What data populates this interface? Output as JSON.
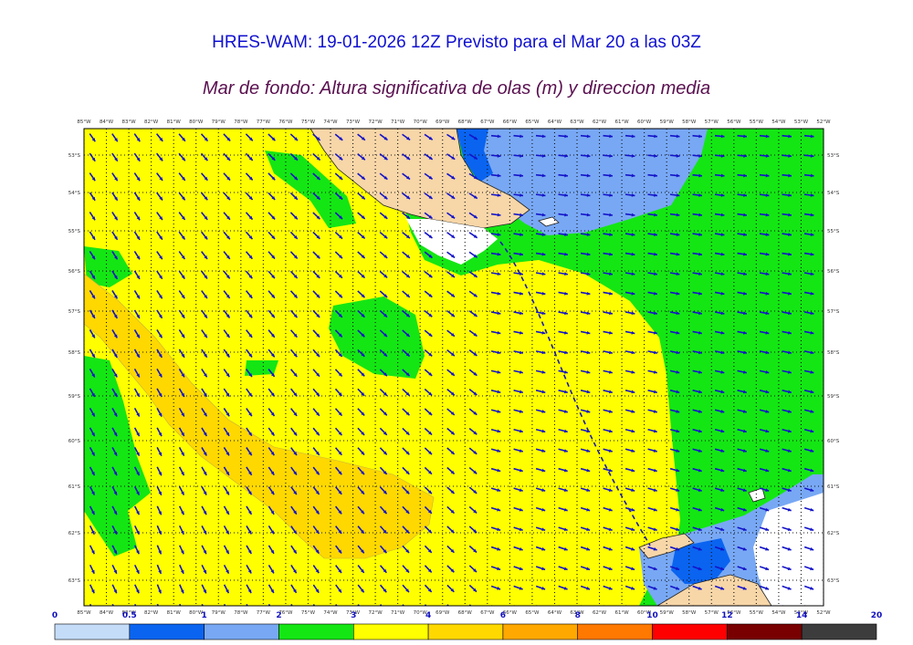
{
  "header": {
    "title": "HRES-WAM: 19-01-2026 12Z Previsto para el Mar 20 a las 03Z",
    "subtitle": "Mar de fondo: Altura significativa de olas (m) y direccion media"
  },
  "map": {
    "lon_labels": [
      "85°W",
      "84°W",
      "83°W",
      "82°W",
      "81°W",
      "80°W",
      "79°W",
      "78°W",
      "77°W",
      "76°W",
      "75°W",
      "74°W",
      "73°W",
      "72°W",
      "71°W",
      "70°W",
      "69°W",
      "68°W",
      "67°W",
      "66°W",
      "65°W",
      "64°W",
      "63°W",
      "62°W",
      "61°W",
      "60°W",
      "59°W",
      "58°W",
      "57°W",
      "56°W",
      "55°W",
      "54°W",
      "53°W",
      "52°W"
    ],
    "lat_labels": [
      "53°S",
      "54°S",
      "55°S",
      "56°S",
      "57°S",
      "58°S",
      "59°S",
      "60°S",
      "61°S",
      "62°S",
      "63°S"
    ],
    "lon_range": [
      -85,
      -52
    ],
    "lat_range": [
      -63.5,
      -52.5
    ],
    "colors": {
      "land": "#f7d6a8",
      "coast": "#222222",
      "grid": "#111111",
      "arrow": "#1414c8",
      "track": "#1a1ab4"
    }
  },
  "colorbar": {
    "boundaries": [
      "0",
      "0.5",
      "1",
      "2",
      "3",
      "4",
      "6",
      "8",
      "10",
      "12",
      "14",
      "20"
    ],
    "colors": [
      "#c4dcf8",
      "#0a64f0",
      "#78a8f4",
      "#14e614",
      "#ffff00",
      "#ffd800",
      "#ffa800",
      "#ff7800",
      "#ff0000",
      "#780000",
      "#3c3c3c"
    ]
  }
}
